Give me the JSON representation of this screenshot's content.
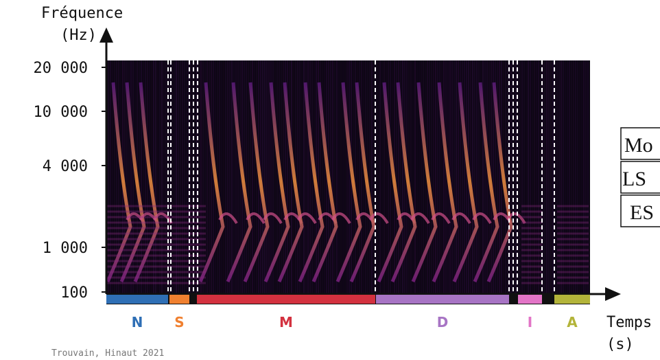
{
  "y_axis": {
    "label_line1": "Fréquence",
    "label_line2": "(Hz)",
    "ticks": [
      "20 000",
      "10 000",
      "4 000",
      "1 000",
      "100"
    ]
  },
  "x_axis": {
    "label_line1": "Temps",
    "label_line2": "(s)"
  },
  "segments": [
    {
      "label": "N",
      "color": "#2f6fb5"
    },
    {
      "label": "S",
      "color": "#f08030"
    },
    {
      "label": "M",
      "color": "#d3313f"
    },
    {
      "label": "D",
      "color": "#a774c4"
    },
    {
      "label": "I",
      "color": "#e274c6"
    },
    {
      "label": "A",
      "color": "#b3b43a"
    }
  ],
  "table": {
    "rows": [
      "Mo",
      "LS",
      "ES"
    ]
  },
  "credit": "Trouvain, Hinaut 2021"
}
